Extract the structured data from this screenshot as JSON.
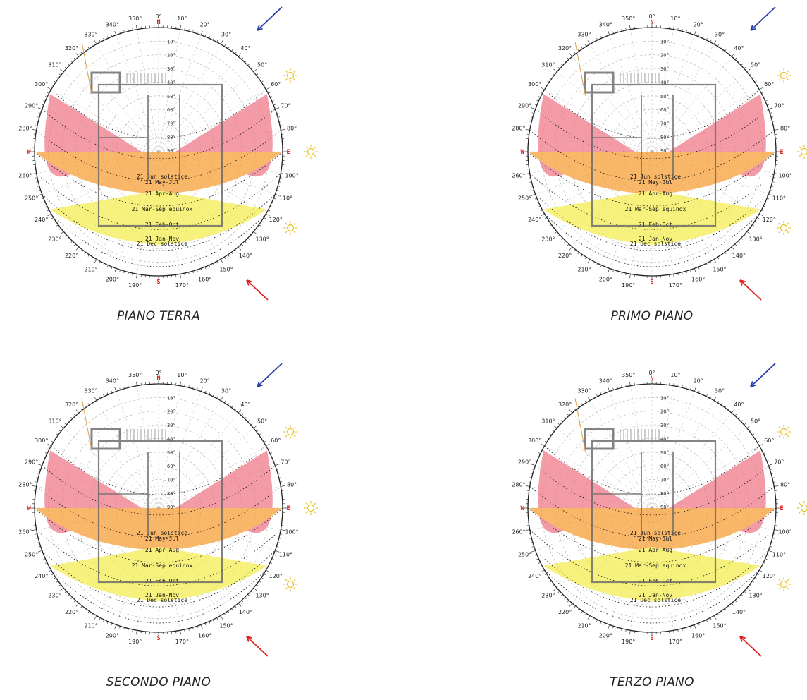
{
  "azimuths": [
    "0°",
    "10°",
    "20°",
    "30°",
    "40°",
    "50°",
    "60°",
    "70°",
    "80°",
    "",
    "100°",
    "110°",
    "120°",
    "130°",
    "140°",
    "150°",
    "160°",
    "170°",
    "",
    "190°",
    "200°",
    "210°",
    "220°",
    "230°",
    "240°",
    "250°",
    "260°",
    "",
    "280°",
    "290°",
    "300°",
    "310°",
    "320°",
    "330°",
    "340°",
    "350°"
  ],
  "cardinals": {
    "n": "N",
    "e": "E",
    "s": "S",
    "w": "W"
  },
  "altitudes": [
    "10°",
    "20°",
    "30°",
    "40°",
    "50°",
    "60°",
    "70°",
    "80°",
    "90°"
  ],
  "sun_paths": [
    {
      "label": "21 Jun  solstice",
      "color": "#f08080"
    },
    {
      "label": "21 May-Jul",
      "color": "#f08080"
    },
    {
      "label": "21  Apr-Aug",
      "color": "#f5a040"
    },
    {
      "label": "21 Mar-Sep equinox",
      "color": "#f5a040"
    },
    {
      "label": "21 Feb-Oct",
      "color": "#f2e250"
    },
    {
      "label": "21 Jan-Nov",
      "color": "#f2e250"
    },
    {
      "label": "21 Dec  solstice",
      "color": "#f2e250"
    }
  ],
  "colors": {
    "summer": "#f07a8a",
    "mid": "#f8a038",
    "winter": "#f5ee52",
    "cardinal": "#e0201c",
    "arrow_blue": "#2a3fa8",
    "arrow_red": "#e02020",
    "sun_icon": "#e8c020"
  },
  "panels": [
    {
      "caption": "PIANO TERRA"
    },
    {
      "caption": "PRIMO PIANO"
    },
    {
      "caption": "SECONDO PIANO"
    },
    {
      "caption": "TERZO PIANO"
    }
  ]
}
